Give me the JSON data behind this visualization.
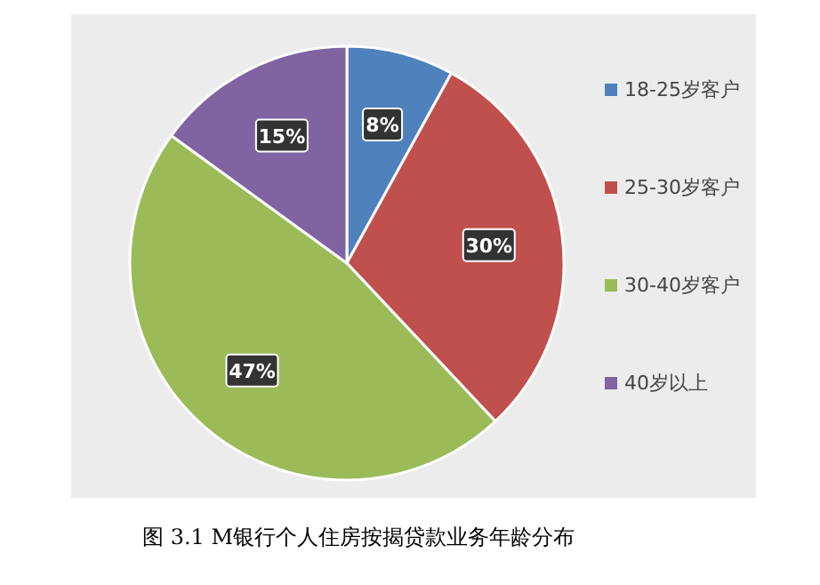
{
  "chart_data": {
    "type": "pie",
    "categories": [
      "18-25岁客户",
      "25-30岁客户",
      "30-40岁客户",
      "40岁以上"
    ],
    "values": [
      8,
      30,
      47,
      15
    ],
    "colors": [
      "#4f81bd",
      "#c0504d",
      "#9bbb59",
      "#8064a2"
    ],
    "value_labels": [
      "8%",
      "30%",
      "47%",
      "15%"
    ],
    "legend": "right",
    "annotations": [
      "图 3.1  M银行个人住房按揭贷款业务年龄分布"
    ]
  }
}
